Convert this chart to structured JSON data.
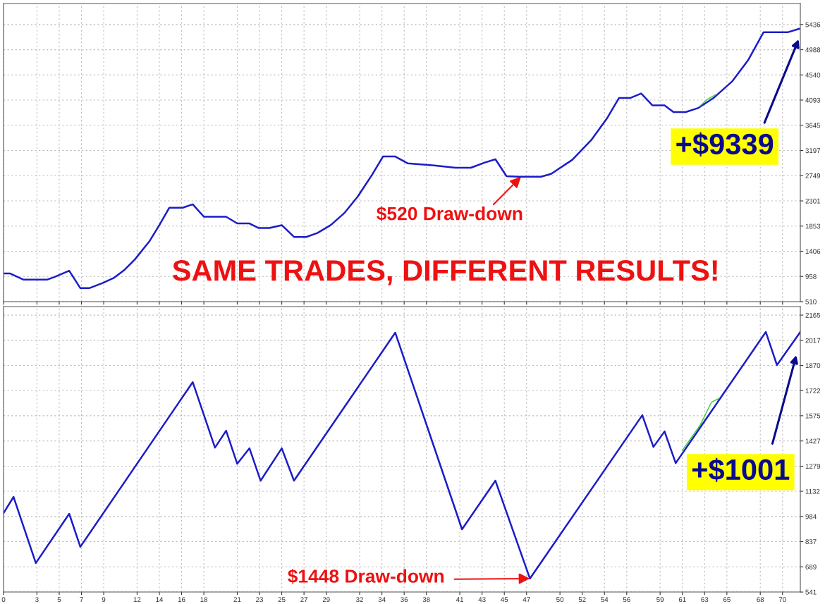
{
  "chart_data": [
    {
      "type": "line",
      "xlim": [
        0,
        71.6
      ],
      "ylim": [
        510,
        5810
      ],
      "xticks": [
        0,
        3,
        5,
        7,
        9,
        12,
        14,
        16,
        18,
        21,
        23,
        25,
        27,
        29,
        32,
        34,
        36,
        38,
        41,
        43,
        45,
        47,
        50,
        52,
        54,
        56,
        59,
        61,
        63,
        65,
        68,
        70
      ],
      "yticks": [
        510,
        958,
        1406,
        1853,
        2301,
        2749,
        3197,
        3645,
        4093,
        4540,
        4988,
        5436
      ],
      "tick_labels": "y",
      "grid": true,
      "marker": "none",
      "line_style": "solid",
      "series": [
        {
          "color": "#1c1cc8",
          "x": [
            0,
            0.6,
            1.8,
            3.9,
            4.6,
            5.9,
            6.9,
            7.7,
            8.9,
            9.9,
            10.9,
            11.8,
            13.1,
            14.0,
            14.9,
            16.1,
            17.0,
            18.0,
            20.0,
            21.0,
            22.1,
            22.9,
            23.9,
            25.0,
            26.1,
            27.2,
            28.2,
            29.4,
            30.6,
            31.8,
            33.1,
            34.1,
            35.2,
            36.3,
            38.7,
            40.6,
            42.0,
            43.2,
            44.2,
            45.2,
            46.3,
            48.3,
            49.2,
            51.1,
            52.8,
            54.2,
            55.3,
            56.3,
            57.3,
            58.3,
            59.4,
            60.2,
            61.3,
            62.4,
            63.8,
            65.5,
            66.9,
            68.3,
            70.5,
            71.5
          ],
          "values": [
            1010,
            1010,
            900,
            900,
            950,
            1060,
            750,
            750,
            840,
            930,
            1080,
            1260,
            1580,
            1870,
            2180,
            2180,
            2240,
            2020,
            2020,
            1900,
            1900,
            1820,
            1820,
            1870,
            1660,
            1660,
            1730,
            1870,
            2080,
            2370,
            2760,
            3090,
            3090,
            2970,
            2930,
            2890,
            2890,
            2980,
            3040,
            2740,
            2730,
            2730,
            2780,
            3030,
            3380,
            3760,
            4130,
            4130,
            4210,
            4000,
            4000,
            3880,
            3880,
            3950,
            4130,
            4430,
            4800,
            5300,
            5300,
            5360
          ]
        },
        {
          "color": "#33cc33",
          "x": [
            62.6,
            63.2,
            64.0
          ],
          "values": [
            3990,
            4100,
            4190
          ]
        }
      ],
      "annotations": [
        "SAME TRADES, DIFFERENT RESULTS!",
        {
          "text": "$520 Draw-down",
          "x": 46.5,
          "y": 2730
        },
        "+$9339"
      ]
    },
    {
      "type": "line",
      "xlim": [
        0,
        71.6
      ],
      "ylim": [
        541,
        2215
      ],
      "xticks": [
        0,
        3,
        5,
        7,
        9,
        12,
        14,
        16,
        18,
        21,
        23,
        25,
        27,
        29,
        32,
        34,
        36,
        38,
        41,
        43,
        45,
        47,
        50,
        52,
        54,
        56,
        59,
        61,
        63,
        65,
        68,
        70
      ],
      "yticks": [
        541,
        689,
        837,
        984,
        1132,
        1279,
        1427,
        1575,
        1722,
        1870,
        2017,
        2165
      ],
      "grid": true,
      "marker": "none",
      "line_style": "solid",
      "series": [
        {
          "color": "#1c1cc8",
          "x": [
            0,
            0.9,
            2.9,
            5.9,
            6.9,
            17.0,
            19.0,
            20.0,
            21.0,
            22.1,
            23.1,
            25.0,
            26.1,
            35.2,
            41.2,
            44.2,
            47.3,
            57.4,
            58.4,
            59.4,
            60.4,
            68.5,
            69.5,
            71.6
          ],
          "values": [
            1004,
            1099,
            711,
            1000,
            806,
            1772,
            1388,
            1487,
            1293,
            1384,
            1194,
            1384,
            1194,
            2062,
            909,
            1194,
            620,
            1578,
            1392,
            1483,
            1297,
            2066,
            1872,
            2066
          ]
        },
        {
          "color": "#33cc33",
          "x": [
            61.0,
            62.6,
            63.6,
            64.3
          ],
          "values": [
            1372,
            1520,
            1653,
            1677
          ]
        }
      ],
      "annotations": [
        {
          "text": "$1448 Draw-down",
          "x": 47.3,
          "y": 620
        },
        "+$1001"
      ]
    }
  ]
}
